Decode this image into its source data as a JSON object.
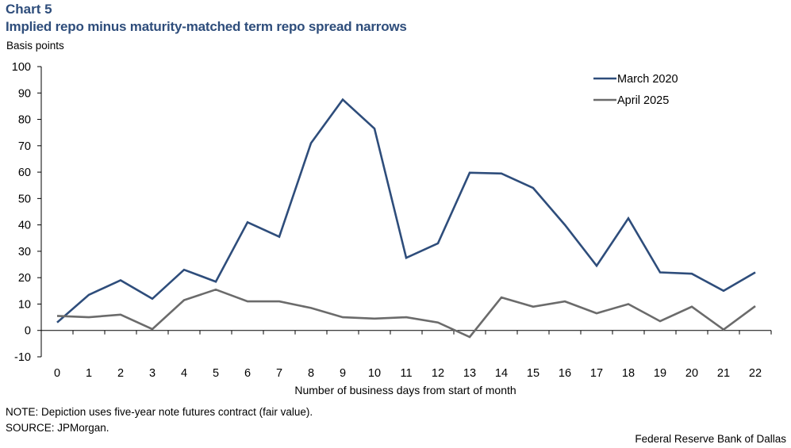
{
  "header": {
    "chart_number": "Chart 5",
    "title": "Implied repo minus maturity-matched term repo spread narrows"
  },
  "footer": {
    "note": "NOTE: Depiction uses five-year note futures contract (fair value).",
    "source": "SOURCE: JPMorgan.",
    "credit": "Federal Reserve Bank of Dallas"
  },
  "colors": {
    "title": "#2e4d7b",
    "march_2020": "#2e4d7b",
    "april_2025": "#6b6b6b",
    "axis": "#000000"
  },
  "chart_data": {
    "type": "line",
    "title": "Implied repo minus maturity-matched term repo spread narrows",
    "xlabel": "Number of business days from start of month",
    "ylabel": "Basis points",
    "ylim": [
      -10,
      100
    ],
    "yticks": [
      -10,
      0,
      10,
      20,
      30,
      40,
      50,
      60,
      70,
      80,
      90,
      100
    ],
    "x": [
      0,
      1,
      2,
      3,
      4,
      5,
      6,
      7,
      8,
      9,
      10,
      11,
      12,
      13,
      14,
      15,
      16,
      17,
      18,
      19,
      20,
      21,
      22
    ],
    "grid": false,
    "legend_position": "top-right",
    "series": [
      {
        "name": "March 2020",
        "color_key": "march_2020",
        "values": [
          3,
          13.5,
          19,
          12,
          23,
          18.5,
          41,
          35.5,
          71,
          87.5,
          76.5,
          27.5,
          33,
          59.8,
          59.5,
          54,
          40,
          24.5,
          42.5,
          22,
          21.5,
          15,
          22
        ]
      },
      {
        "name": "April 2025",
        "color_key": "april_2025",
        "values": [
          5.5,
          5,
          6,
          0.5,
          11.5,
          15.5,
          11,
          11,
          8.5,
          5,
          4.5,
          5,
          3,
          -2.5,
          12.5,
          9,
          11,
          6.5,
          10,
          3.5,
          9,
          0.3,
          9.2
        ]
      }
    ]
  }
}
